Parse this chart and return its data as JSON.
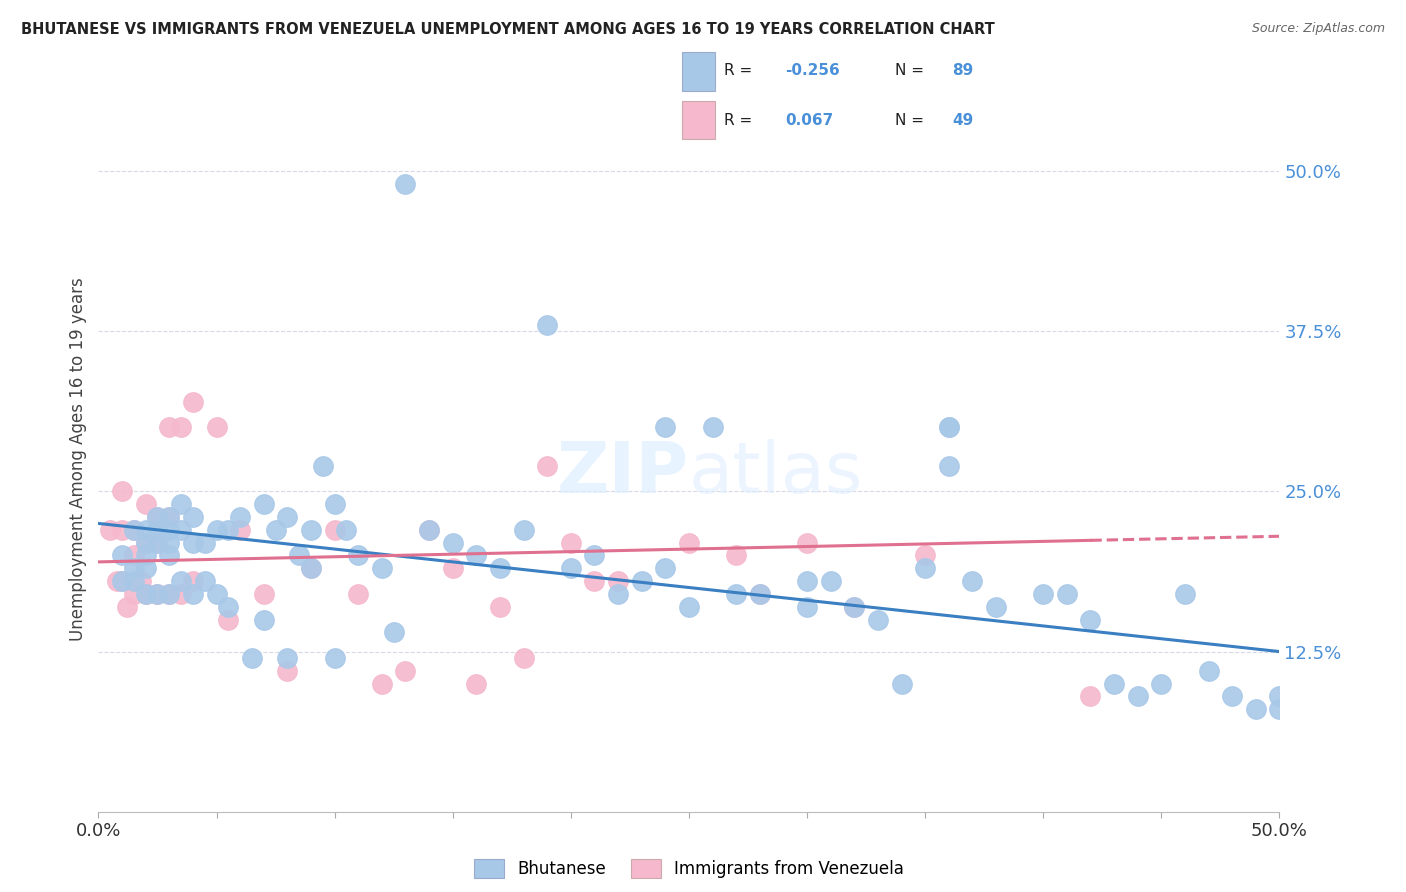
{
  "title": "BHUTANESE VS IMMIGRANTS FROM VENEZUELA UNEMPLOYMENT AMONG AGES 16 TO 19 YEARS CORRELATION CHART",
  "source": "Source: ZipAtlas.com",
  "ylabel": "Unemployment Among Ages 16 to 19 years",
  "xlim": [
    0.0,
    0.5
  ],
  "ylim": [
    0.0,
    0.55
  ],
  "bhutanese_color": "#a8c8e8",
  "venezuela_color": "#f5b8cc",
  "blue_line_color": "#3a7fc1",
  "pink_line_color": "#e07090",
  "watermark_color": "#dce8f5",
  "legend_r_blue": "-0.256",
  "legend_n_blue": "89",
  "legend_r_pink": "0.067",
  "legend_n_pink": "49",
  "background_color": "#ffffff",
  "grid_color": "#d8d8e8",
  "right_tick_color": "#4a90d9",
  "bhutanese_x": [
    0.01,
    0.01,
    0.015,
    0.015,
    0.015,
    0.02,
    0.02,
    0.02,
    0.02,
    0.02,
    0.025,
    0.025,
    0.025,
    0.025,
    0.03,
    0.03,
    0.03,
    0.03,
    0.03,
    0.035,
    0.035,
    0.035,
    0.04,
    0.04,
    0.04,
    0.045,
    0.045,
    0.05,
    0.05,
    0.055,
    0.055,
    0.06,
    0.065,
    0.07,
    0.07,
    0.075,
    0.08,
    0.08,
    0.085,
    0.09,
    0.09,
    0.095,
    0.1,
    0.1,
    0.105,
    0.11,
    0.12,
    0.125,
    0.13,
    0.14,
    0.15,
    0.16,
    0.17,
    0.18,
    0.19,
    0.2,
    0.21,
    0.22,
    0.23,
    0.24,
    0.25,
    0.27,
    0.28,
    0.3,
    0.3,
    0.31,
    0.32,
    0.33,
    0.34,
    0.35,
    0.36,
    0.37,
    0.38,
    0.4,
    0.41,
    0.42,
    0.43,
    0.44,
    0.45,
    0.46,
    0.47,
    0.48,
    0.49,
    0.5,
    0.5,
    0.24,
    0.26,
    0.36,
    0.36
  ],
  "bhutanese_y": [
    0.2,
    0.18,
    0.22,
    0.19,
    0.18,
    0.21,
    0.2,
    0.22,
    0.17,
    0.19,
    0.21,
    0.23,
    0.22,
    0.17,
    0.21,
    0.23,
    0.22,
    0.2,
    0.17,
    0.22,
    0.24,
    0.18,
    0.21,
    0.23,
    0.17,
    0.21,
    0.18,
    0.22,
    0.17,
    0.22,
    0.16,
    0.23,
    0.12,
    0.24,
    0.15,
    0.22,
    0.23,
    0.12,
    0.2,
    0.22,
    0.19,
    0.27,
    0.24,
    0.12,
    0.22,
    0.2,
    0.19,
    0.14,
    0.49,
    0.22,
    0.21,
    0.2,
    0.19,
    0.22,
    0.38,
    0.19,
    0.2,
    0.17,
    0.18,
    0.19,
    0.16,
    0.17,
    0.17,
    0.18,
    0.16,
    0.18,
    0.16,
    0.15,
    0.1,
    0.19,
    0.27,
    0.18,
    0.16,
    0.17,
    0.17,
    0.15,
    0.1,
    0.09,
    0.1,
    0.17,
    0.11,
    0.09,
    0.08,
    0.09,
    0.08,
    0.3,
    0.3,
    0.3,
    0.3
  ],
  "venezuela_x": [
    0.005,
    0.008,
    0.01,
    0.01,
    0.01,
    0.012,
    0.015,
    0.015,
    0.015,
    0.018,
    0.02,
    0.02,
    0.02,
    0.025,
    0.025,
    0.025,
    0.03,
    0.03,
    0.03,
    0.035,
    0.035,
    0.04,
    0.04,
    0.05,
    0.055,
    0.06,
    0.07,
    0.08,
    0.09,
    0.1,
    0.11,
    0.12,
    0.13,
    0.14,
    0.15,
    0.16,
    0.17,
    0.18,
    0.19,
    0.2,
    0.21,
    0.22,
    0.25,
    0.27,
    0.28,
    0.3,
    0.32,
    0.35,
    0.42
  ],
  "venezuela_y": [
    0.22,
    0.18,
    0.25,
    0.22,
    0.18,
    0.16,
    0.22,
    0.2,
    0.17,
    0.18,
    0.24,
    0.21,
    0.17,
    0.23,
    0.21,
    0.17,
    0.3,
    0.23,
    0.17,
    0.3,
    0.17,
    0.32,
    0.18,
    0.3,
    0.15,
    0.22,
    0.17,
    0.11,
    0.19,
    0.22,
    0.17,
    0.1,
    0.11,
    0.22,
    0.19,
    0.1,
    0.16,
    0.12,
    0.27,
    0.21,
    0.18,
    0.18,
    0.21,
    0.2,
    0.17,
    0.21,
    0.16,
    0.2,
    0.09
  ]
}
